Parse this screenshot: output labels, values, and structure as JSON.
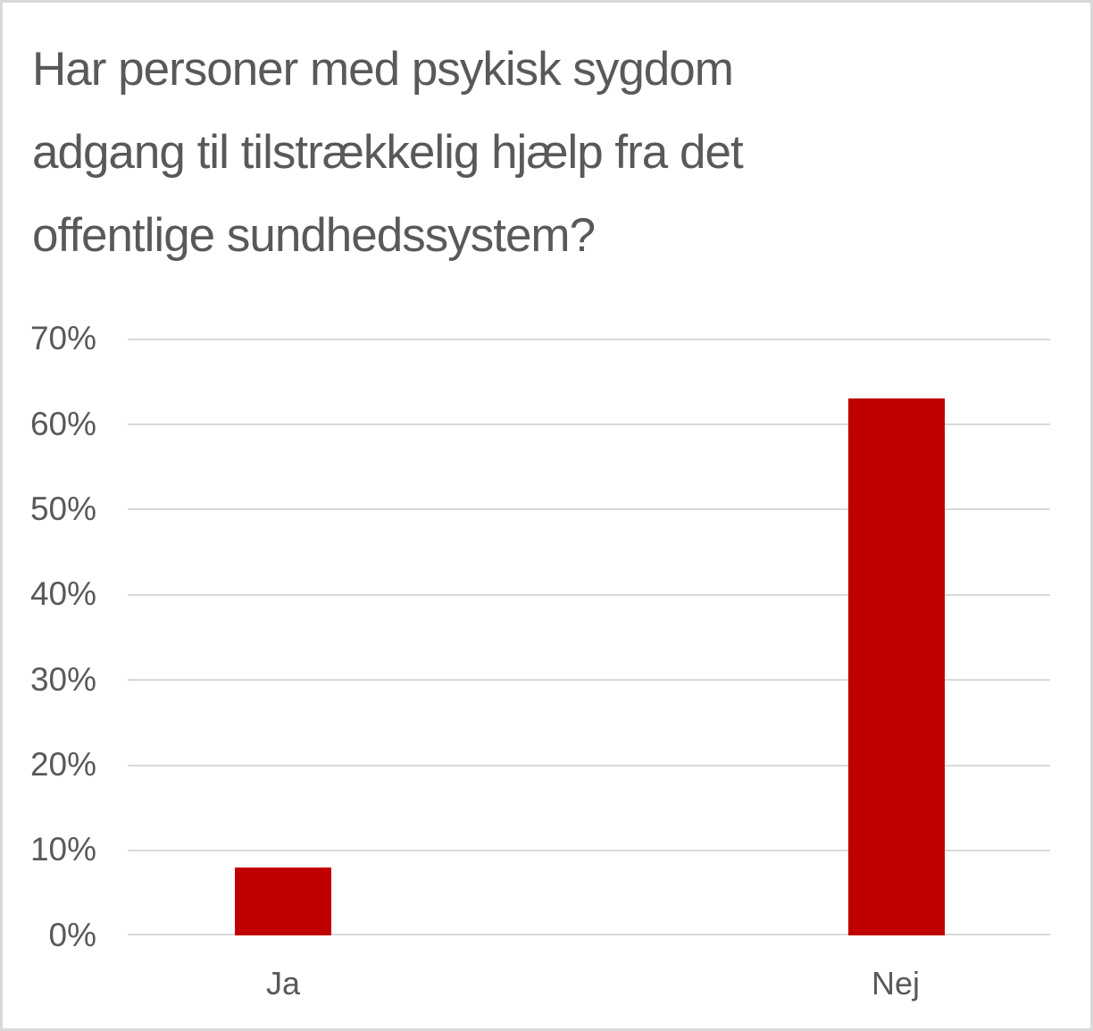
{
  "chart_data": {
    "type": "bar",
    "title": "Har personer med psykisk sygdom adgang til tilstrækkelig hjælp fra det offentlige sundhedssystem?",
    "title_lines": [
      "Har personer med psykisk sygdom",
      "adgang til tilstrækkelig hjælp fra det",
      "offentlige sundhedssystem?"
    ],
    "categories": [
      "Ja",
      "Nej"
    ],
    "values": [
      8,
      63
    ],
    "unit": "%",
    "xlabel": "",
    "ylabel": "",
    "ylim": [
      0,
      70
    ],
    "ytick_step": 10,
    "yticks": [
      "70%",
      "60%",
      "50%",
      "40%",
      "30%",
      "20%",
      "10%",
      "0%"
    ],
    "grid": true,
    "legend": false,
    "colors": {
      "bar": "#c00000",
      "text": "#595959",
      "gridline": "#d9d9d9",
      "border": "#d9d9d9",
      "background": "#ffffff"
    }
  }
}
